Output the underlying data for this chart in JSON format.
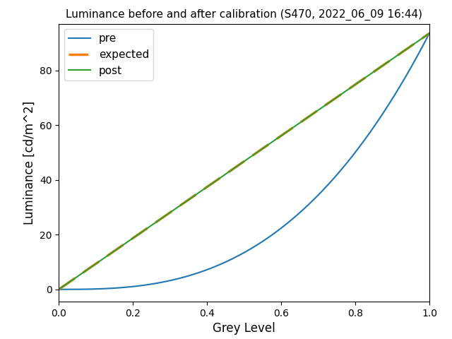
{
  "title": "Luminance before and after calibration (S470, 2022_06_09 16:44)",
  "xlabel": "Grey Level",
  "ylabel": "Luminance [cd/m^2]",
  "xlim": [
    0.0,
    1.0
  ],
  "ylim": [
    -4.5,
    97
  ],
  "max_luminance": 93.5,
  "gamma_pre": 2.8,
  "pre_color": "#1f77b4",
  "expected_color": "#ff7f0e",
  "post_color": "#2ca02c",
  "legend_labels": [
    "pre",
    "expected",
    "post"
  ],
  "background_color": "#ffffff",
  "title_fontsize": 11,
  "label_fontsize": 12,
  "legend_fontsize": 11
}
